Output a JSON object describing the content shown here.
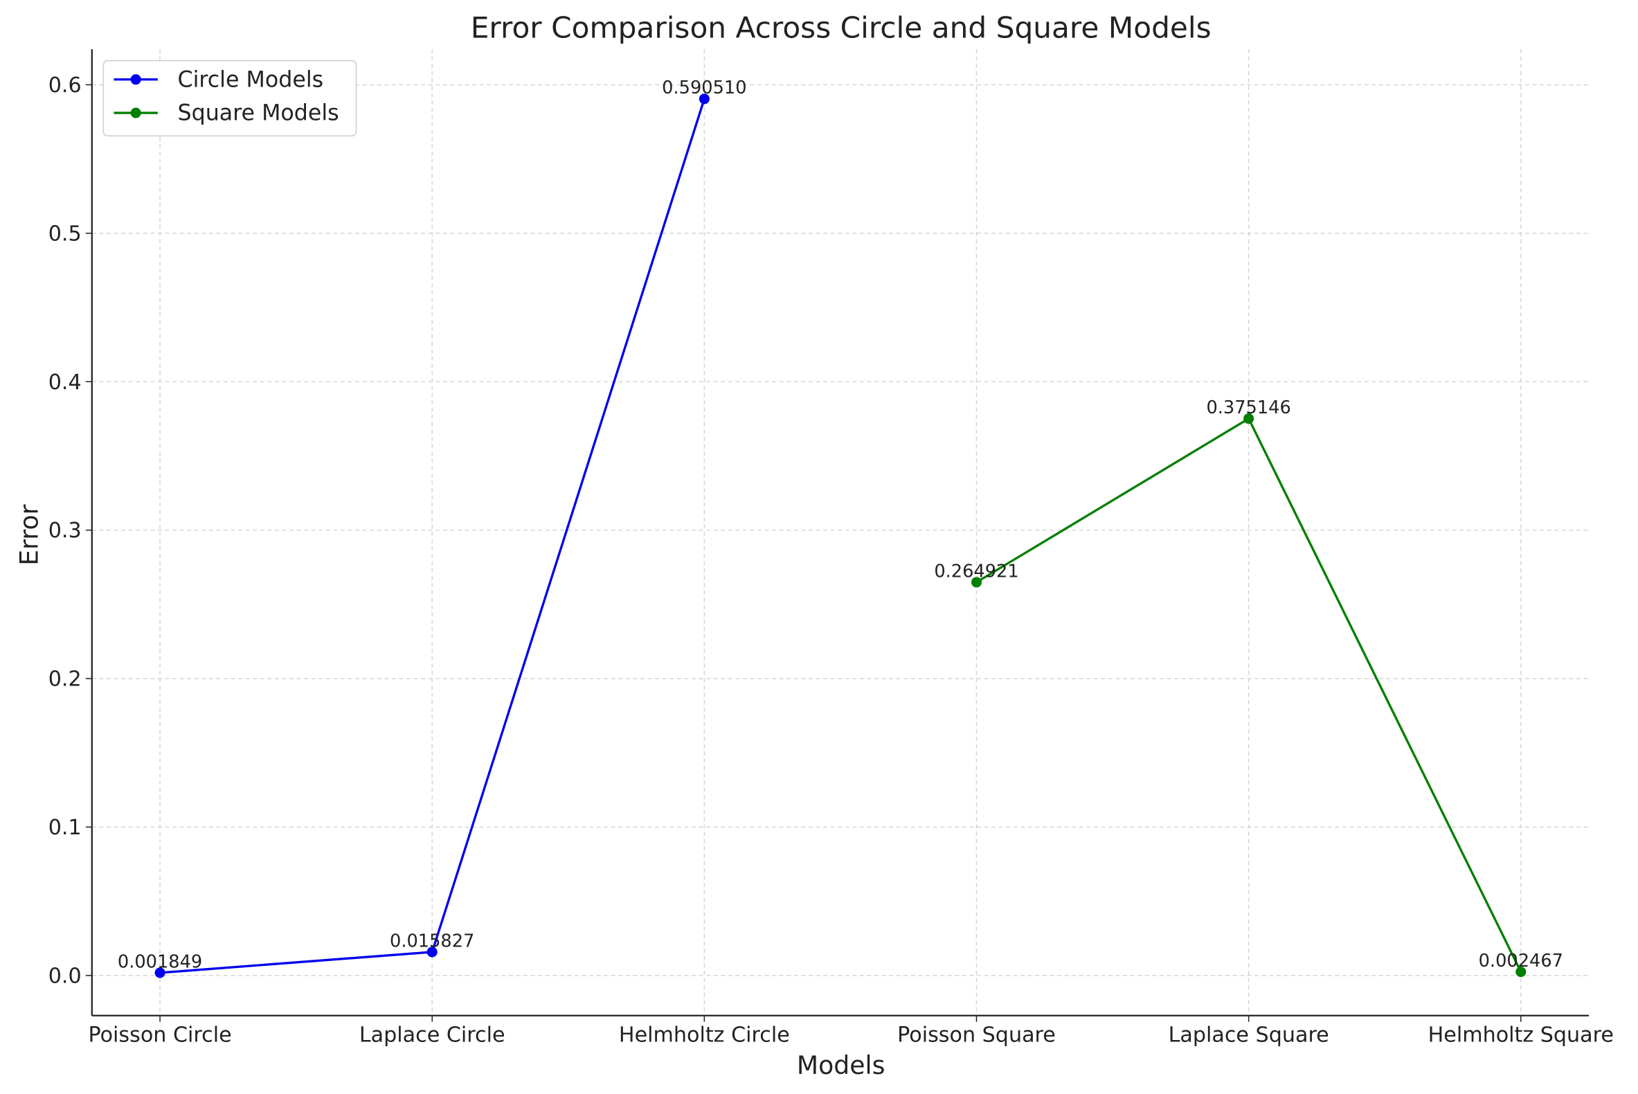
{
  "chart_data": {
    "type": "line",
    "title": "Error Comparison Across Circle and Square Models",
    "xlabel": "Models",
    "ylabel": "Error",
    "categories": [
      "Poisson Circle",
      "Laplace Circle",
      "Helmholtz Circle",
      "Poisson Square",
      "Laplace Square",
      "Helmholtz Square"
    ],
    "series": [
      {
        "name": "Circle Models",
        "color": "#0000ee",
        "values": [
          0.001849,
          0.015827,
          0.59051,
          null,
          null,
          null
        ],
        "value_labels": [
          "0.001849",
          "0.015827",
          "0.590510",
          null,
          null,
          null
        ]
      },
      {
        "name": "Square Models",
        "color": "#007f00",
        "values": [
          null,
          null,
          null,
          0.264921,
          0.375146,
          0.002467
        ],
        "value_labels": [
          null,
          null,
          null,
          "0.264921",
          "0.375146",
          "0.002467"
        ]
      }
    ],
    "ylim": [
      -0.027,
      0.624
    ],
    "yticks": [
      {
        "value": 0,
        "label": "0.0"
      },
      0.1,
      0.2,
      0.3,
      0.4,
      0.5,
      0.6
    ],
    "grid": true,
    "legend": "upper-left"
  }
}
